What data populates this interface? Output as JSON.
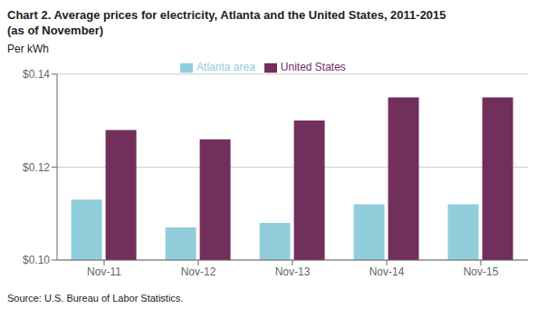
{
  "chart_data": {
    "type": "bar",
    "title": "Chart 2.  Average prices for electricity, Atlanta and the United States, 2011-2015",
    "subtitle": "(as of November)",
    "ylabel": "Per kWh",
    "annotations": [
      "Source: U.S. Bureau of Labor Statistics."
    ],
    "categories": [
      "Nov-11",
      "Nov-12",
      "Nov-13",
      "Nov-14",
      "Nov-15"
    ],
    "series": [
      {
        "name": "Atlanta area",
        "color": "#92CDDC",
        "values": [
          0.113,
          0.107,
          0.108,
          0.112,
          0.112
        ]
      },
      {
        "name": "United States",
        "color": "#722F5B",
        "values": [
          0.128,
          0.126,
          0.13,
          0.135,
          0.135
        ]
      }
    ],
    "ylim": [
      0.1,
      0.14
    ],
    "yticks": [
      {
        "value": 0.1,
        "label": "$0.10"
      },
      {
        "value": 0.12,
        "label": "$0.12"
      },
      {
        "value": 0.14,
        "label": "$0.14"
      }
    ],
    "grid": true,
    "legend": "top"
  }
}
